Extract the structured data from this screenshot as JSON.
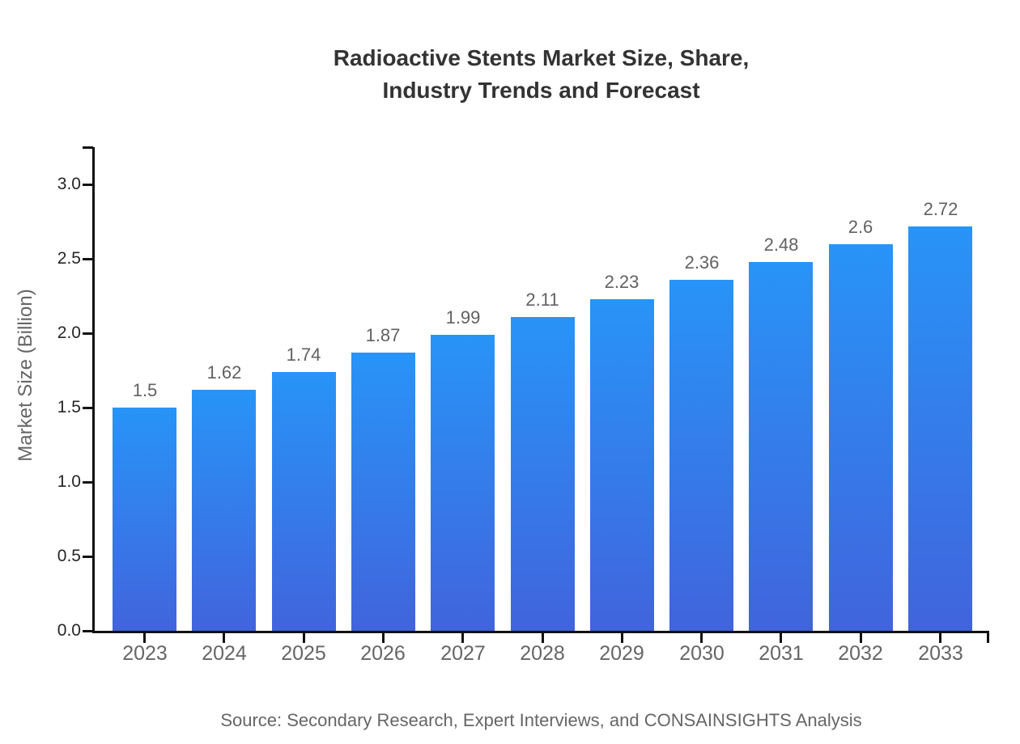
{
  "title": {
    "line1": "Radioactive Stents Market Size, Share,",
    "line2": "Industry Trends and Forecast"
  },
  "chart_data": {
    "type": "bar",
    "title": "Radioactive Stents Market Size, Share, Industry Trends and Forecast",
    "categories": [
      "2023",
      "2024",
      "2025",
      "2026",
      "2027",
      "2028",
      "2029",
      "2030",
      "2031",
      "2032",
      "2033"
    ],
    "values": [
      1.5,
      1.62,
      1.74,
      1.87,
      1.99,
      2.11,
      2.23,
      2.36,
      2.48,
      2.6,
      2.72
    ],
    "value_labels": [
      "1.5",
      "1.62",
      "1.74",
      "1.87",
      "1.99",
      "2.11",
      "2.23",
      "2.36",
      "2.48",
      "2.6",
      "2.72"
    ],
    "xlabel": "",
    "ylabel": "Market Size (Billion)",
    "ylim": [
      0,
      3.25
    ],
    "yticks": [
      0.0,
      0.5,
      1.0,
      1.5,
      2.0,
      2.5,
      3.0
    ],
    "ytick_labels": [
      "0.0",
      "0.5",
      "1.0",
      "1.5",
      "2.0",
      "2.5",
      "3.0"
    ],
    "grid": false,
    "legend_position": "none",
    "colors": {
      "bar_gradient_top": "#2894f8",
      "bar_gradient_bottom": "#4164dc",
      "axis": "#111111",
      "title_text": "#333333",
      "value_label_text": "#616161",
      "x_tick_label_text": "#666666",
      "y_tick_label_text": "#262626",
      "y_axis_title_text": "#666666"
    }
  },
  "source_note": "Source: Secondary Research, Expert Interviews, and CONSAINSIGHTS Analysis"
}
